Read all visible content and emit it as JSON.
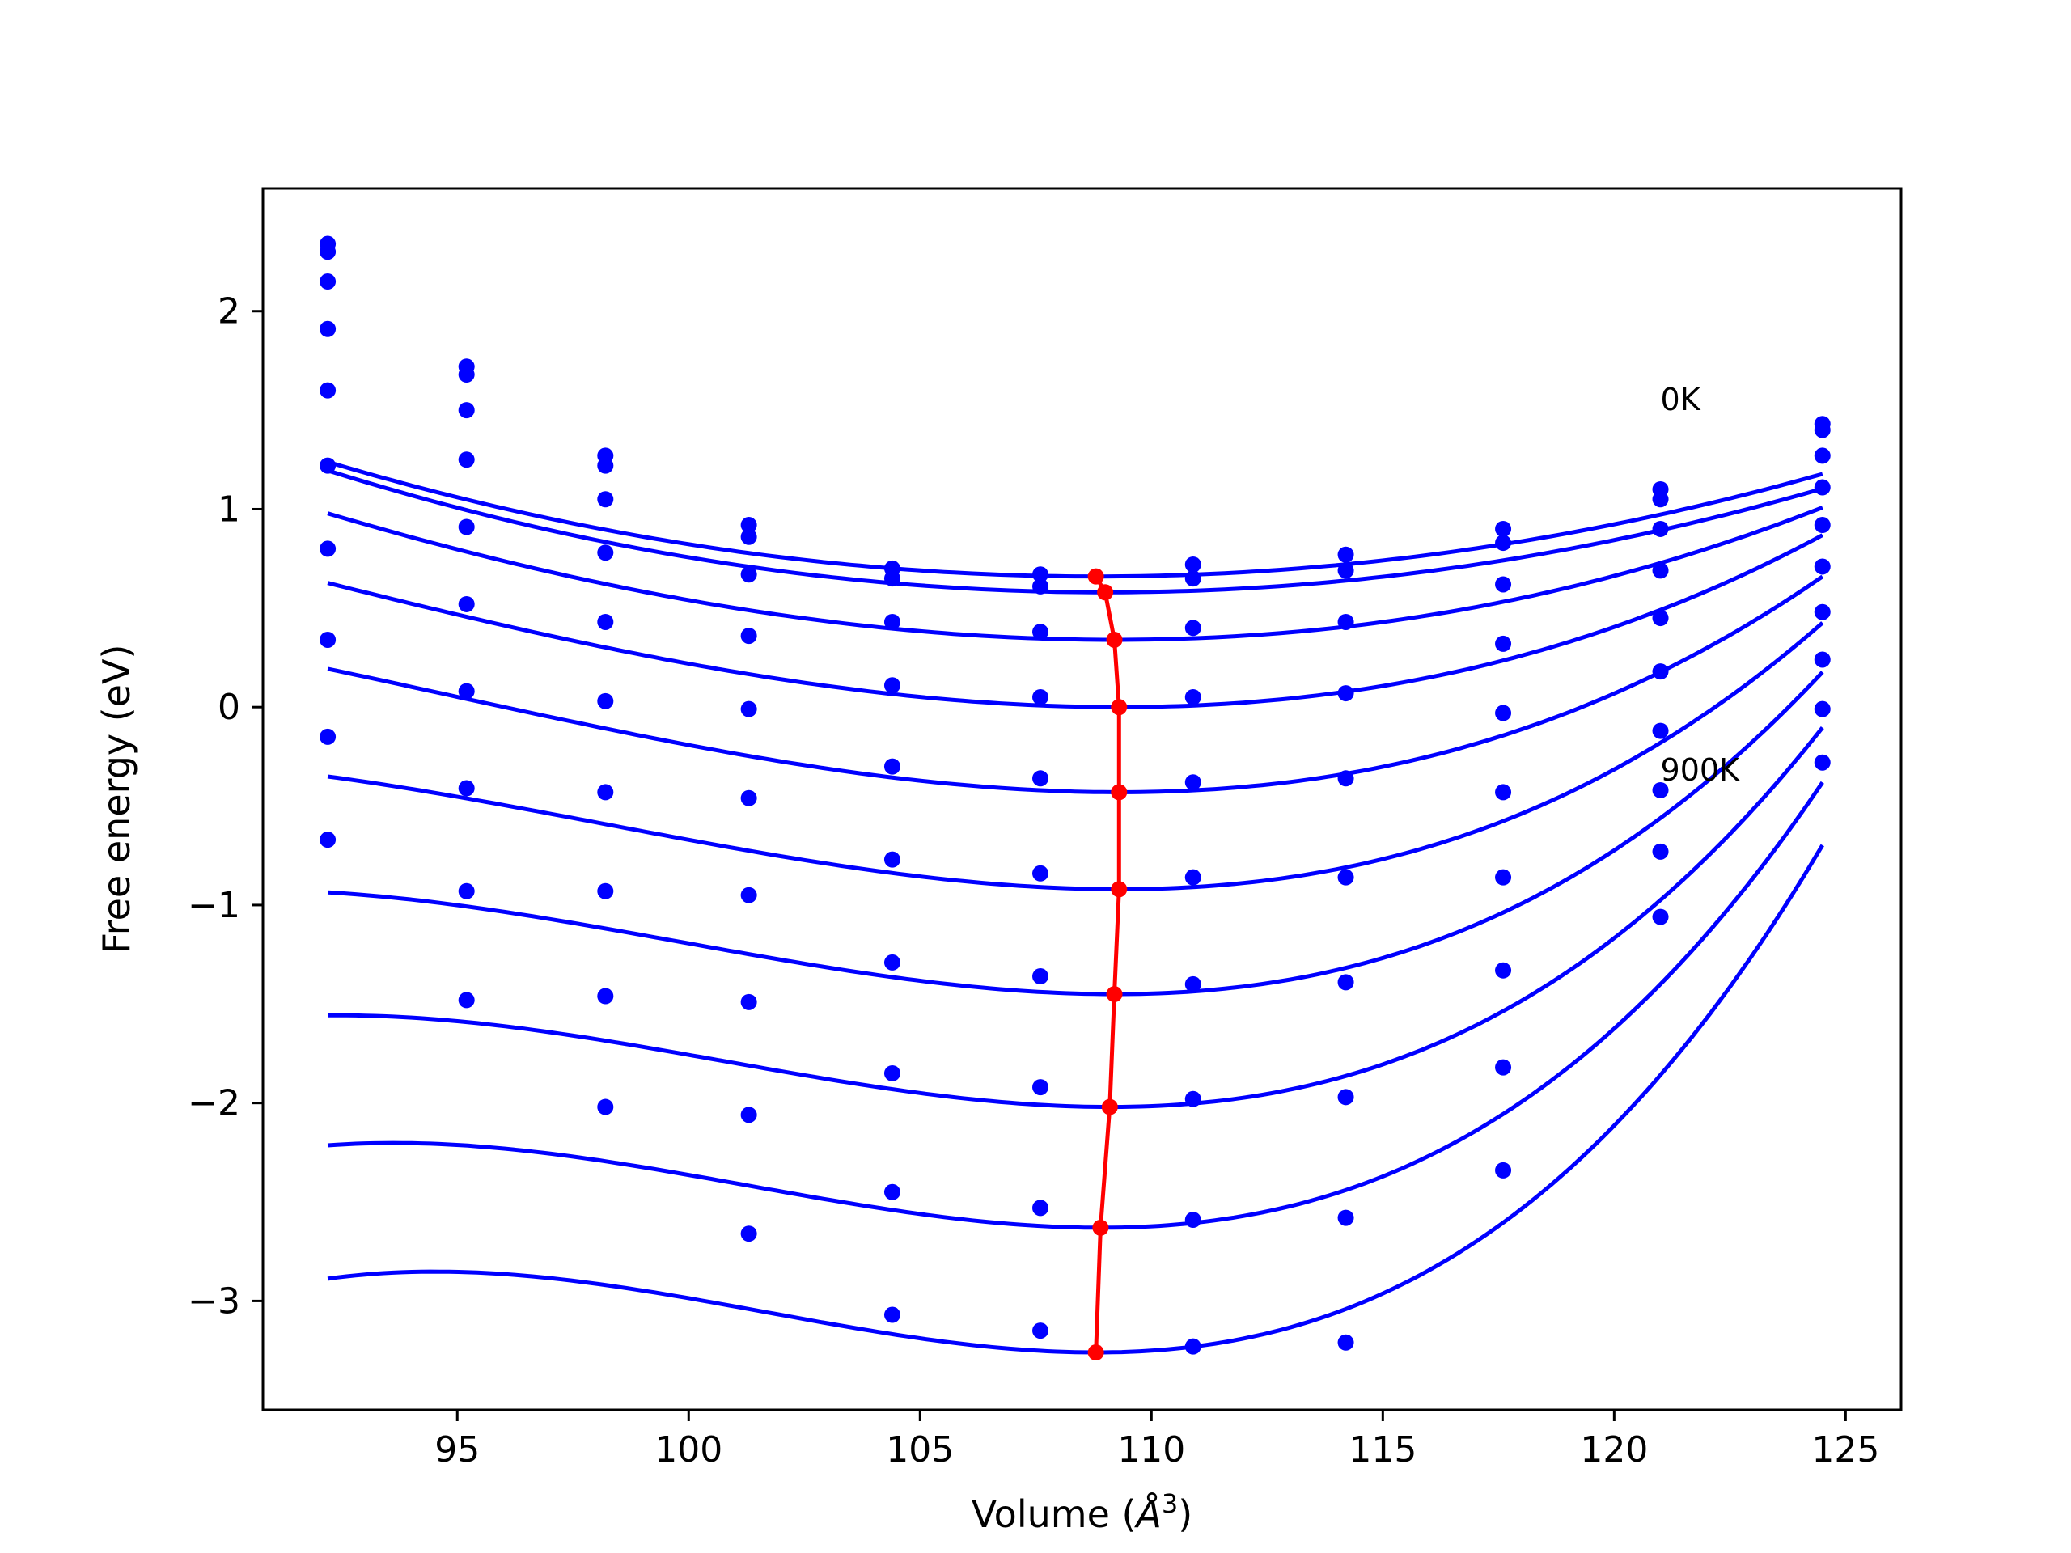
{
  "chart_data": {
    "type": "scatter",
    "xlabel_prefix": "Volume (",
    "xlabel_symbol": "Å",
    "xlabel_sup": "3",
    "xlabel_suffix": ")",
    "ylabel": "Free energy (eV)",
    "xlim": [
      90.8,
      126.2
    ],
    "ylim": [
      -3.55,
      2.62
    ],
    "xticks": [
      {
        "value": 95,
        "label": "95"
      },
      {
        "value": 100,
        "label": "100"
      },
      {
        "value": 105,
        "label": "105"
      },
      {
        "value": 110,
        "label": "110"
      },
      {
        "value": 115,
        "label": "115"
      },
      {
        "value": 120,
        "label": "120"
      },
      {
        "value": 125,
        "label": "125"
      }
    ],
    "yticks": [
      {
        "value": 2,
        "label": "2"
      },
      {
        "value": 1,
        "label": "1"
      },
      {
        "value": 0,
        "label": "0"
      },
      {
        "value": -1,
        "label": "−1"
      },
      {
        "value": -2,
        "label": "−2"
      },
      {
        "value": -3,
        "label": "−3"
      }
    ],
    "grid": false,
    "annotations": [
      {
        "text": "0K",
        "x": 121.0,
        "y": 1.5
      },
      {
        "text": "900K",
        "x": 121.0,
        "y": -0.37
      }
    ],
    "data_volumes": [
      92.2,
      95.2,
      98.2,
      101.3,
      104.4,
      107.6,
      110.9,
      114.2,
      117.6,
      121.0,
      124.5
    ],
    "series": [
      {
        "points": [
          2.34,
          1.72,
          1.27,
          0.92,
          0.7,
          0.67,
          0.72,
          0.77,
          0.9,
          1.1,
          1.43
        ],
        "fit": {
          "v0": 108.8,
          "f0": 0.66,
          "a": 0.0021,
          "b": 0.0
        }
      },
      {
        "points": [
          2.3,
          1.68,
          1.22,
          0.86,
          0.65,
          0.61,
          0.65,
          0.69,
          0.83,
          1.05,
          1.4
        ],
        "fit": {
          "v0": 109.0,
          "f0": 0.58,
          "a": 0.00218,
          "b": 0.0
        }
      },
      {
        "points": [
          2.15,
          1.5,
          1.05,
          0.67,
          0.43,
          0.38,
          0.4,
          0.43,
          0.62,
          0.9,
          1.27
        ],
        "fit": {
          "v0": 109.2,
          "f0": 0.34,
          "a": 0.00255,
          "b": 2e-05
        }
      },
      {
        "points": [
          1.91,
          1.25,
          0.78,
          0.36,
          0.11,
          0.05,
          0.05,
          0.07,
          0.32,
          0.69,
          1.11
        ],
        "fit": {
          "v0": 109.3,
          "f0": 0.0,
          "a": 0.003,
          "b": 5e-05
        }
      },
      {
        "points": [
          1.6,
          0.91,
          0.43,
          -0.01,
          -0.3,
          -0.36,
          -0.38,
          -0.36,
          -0.03,
          0.45,
          0.92
        ],
        "fit": {
          "v0": 109.3,
          "f0": -0.43,
          "a": 0.0035,
          "b": 8e-05
        }
      },
      {
        "points": [
          1.22,
          0.52,
          0.03,
          -0.46,
          -0.77,
          -0.84,
          -0.86,
          -0.86,
          -0.43,
          0.18,
          0.71
        ],
        "fit": {
          "v0": 109.3,
          "f0": -0.92,
          "a": 0.004,
          "b": 0.00012
        }
      },
      {
        "points": [
          0.8,
          0.08,
          -0.43,
          -0.95,
          -1.29,
          -1.36,
          -1.4,
          -1.39,
          -0.86,
          -0.12,
          0.48
        ],
        "fit": {
          "v0": 109.2,
          "f0": -1.45,
          "a": 0.0045,
          "b": 0.00016
        }
      },
      {
        "points": [
          0.34,
          -0.41,
          -0.93,
          -1.49,
          -1.85,
          -1.92,
          -1.98,
          -1.97,
          -1.33,
          -0.42,
          0.24
        ],
        "fit": {
          "v0": 109.1,
          "f0": -2.02,
          "a": 0.005,
          "b": 0.0002
        }
      },
      {
        "points": [
          -0.15,
          -0.93,
          -1.46,
          -2.06,
          -2.45,
          -2.53,
          -2.59,
          -2.58,
          -1.82,
          -0.73,
          -0.01
        ],
        "fit": {
          "v0": 108.9,
          "f0": -2.63,
          "a": 0.0055,
          "b": 0.00024
        }
      },
      {
        "points": [
          -0.67,
          -1.48,
          -2.02,
          -2.66,
          -3.07,
          -3.15,
          -3.23,
          -3.21,
          -2.34,
          -1.06,
          -0.28
        ],
        "fit": {
          "v0": 108.8,
          "f0": -3.26,
          "a": 0.006,
          "b": 0.00028
        }
      }
    ],
    "minima_line": {
      "x": [
        108.8,
        109.0,
        109.2,
        109.3,
        109.3,
        109.3,
        109.2,
        109.1,
        108.9,
        108.8
      ],
      "y": [
        0.66,
        0.58,
        0.34,
        0.0,
        -0.43,
        -0.92,
        -1.45,
        -2.02,
        -2.63,
        -3.26
      ]
    },
    "colors": {
      "points": "#0000ff",
      "fits": "#0000ff",
      "minima": "#ff0000"
    }
  }
}
